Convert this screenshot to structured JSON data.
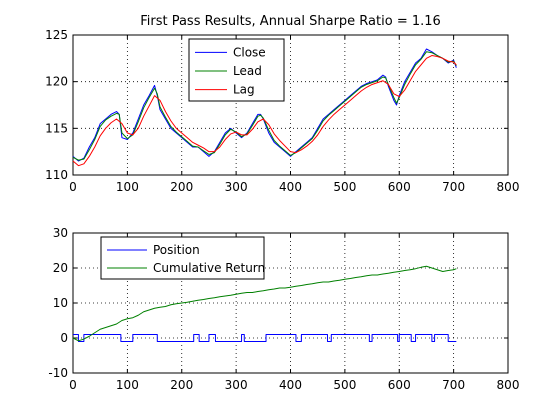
{
  "window": {
    "title": ""
  },
  "chart_data": [
    {
      "type": "line",
      "title": "First Pass Results, Annual Sharpe Ratio = 1.16",
      "xlabel": "",
      "ylabel": "",
      "xlim": [
        0,
        800
      ],
      "ylim": [
        110,
        125
      ],
      "xticks": [
        0,
        100,
        200,
        300,
        400,
        500,
        600,
        700,
        800
      ],
      "yticks": [
        110,
        115,
        120,
        125
      ],
      "grid": true,
      "legend": "top-center",
      "series": [
        {
          "name": "Close",
          "color": "#0000ff",
          "x": [
            0,
            10,
            20,
            30,
            40,
            50,
            60,
            70,
            80,
            85,
            90,
            100,
            110,
            120,
            130,
            140,
            150,
            155,
            160,
            170,
            180,
            190,
            200,
            210,
            220,
            230,
            240,
            250,
            260,
            270,
            280,
            290,
            300,
            310,
            320,
            330,
            340,
            345,
            350,
            360,
            370,
            380,
            390,
            400,
            410,
            420,
            430,
            440,
            450,
            460,
            470,
            480,
            490,
            500,
            510,
            520,
            530,
            540,
            550,
            560,
            570,
            575,
            580,
            590,
            595,
            600,
            610,
            620,
            630,
            640,
            650,
            660,
            670,
            680,
            690,
            700,
            705
          ],
          "values": [
            112.0,
            111.5,
            111.8,
            113.0,
            114.0,
            115.5,
            116.0,
            116.5,
            116.8,
            116.5,
            114.0,
            113.8,
            114.5,
            116.0,
            117.5,
            118.5,
            119.6,
            118.5,
            117.0,
            116.0,
            115.0,
            114.5,
            114.0,
            113.5,
            113.0,
            113.0,
            112.5,
            112.0,
            112.5,
            113.5,
            114.5,
            115.0,
            114.5,
            114.0,
            114.5,
            115.5,
            116.5,
            116.5,
            116.0,
            114.5,
            113.5,
            113.0,
            112.5,
            112.0,
            112.5,
            113.0,
            113.5,
            114.0,
            115.0,
            116.0,
            116.5,
            117.0,
            117.5,
            118.0,
            118.5,
            119.0,
            119.5,
            119.8,
            120.0,
            120.2,
            120.7,
            120.5,
            119.5,
            118.0,
            117.5,
            118.5,
            120.0,
            121.0,
            122.0,
            122.5,
            123.5,
            123.2,
            122.8,
            122.5,
            122.0,
            122.3,
            121.5
          ]
        },
        {
          "name": "Lead",
          "color": "#008000",
          "x": [
            0,
            10,
            20,
            30,
            40,
            50,
            60,
            70,
            80,
            85,
            90,
            100,
            110,
            120,
            130,
            140,
            150,
            155,
            160,
            170,
            180,
            190,
            200,
            210,
            220,
            230,
            240,
            250,
            260,
            270,
            280,
            290,
            300,
            310,
            320,
            330,
            340,
            345,
            350,
            360,
            370,
            380,
            390,
            400,
            410,
            420,
            430,
            440,
            450,
            460,
            470,
            480,
            490,
            500,
            510,
            520,
            530,
            540,
            550,
            560,
            570,
            575,
            580,
            590,
            595,
            600,
            610,
            620,
            630,
            640,
            650,
            660,
            670,
            680,
            690,
            700,
            705
          ],
          "values": [
            111.9,
            111.6,
            111.7,
            112.7,
            113.8,
            115.2,
            115.9,
            116.3,
            116.6,
            116.5,
            114.5,
            113.9,
            114.3,
            115.7,
            117.2,
            118.3,
            119.3,
            118.7,
            117.3,
            116.2,
            115.2,
            114.6,
            114.1,
            113.6,
            113.1,
            113.0,
            112.6,
            112.2,
            112.4,
            113.3,
            114.3,
            114.9,
            114.6,
            114.1,
            114.4,
            115.3,
            116.3,
            116.4,
            116.1,
            114.8,
            113.7,
            113.1,
            112.6,
            112.1,
            112.4,
            112.9,
            113.4,
            113.9,
            114.8,
            115.8,
            116.4,
            116.9,
            117.4,
            117.9,
            118.4,
            118.9,
            119.4,
            119.7,
            119.9,
            120.1,
            120.5,
            120.4,
            119.7,
            118.3,
            117.7,
            118.3,
            119.7,
            120.8,
            121.8,
            122.4,
            123.2,
            123.1,
            122.8,
            122.5,
            122.1,
            122.2,
            121.7
          ]
        },
        {
          "name": "Lag",
          "color": "#ff0000",
          "x": [
            0,
            10,
            20,
            30,
            40,
            50,
            60,
            70,
            80,
            90,
            100,
            110,
            120,
            130,
            140,
            150,
            160,
            170,
            180,
            190,
            200,
            210,
            220,
            230,
            240,
            250,
            260,
            270,
            280,
            290,
            300,
            310,
            320,
            330,
            340,
            350,
            360,
            370,
            380,
            390,
            400,
            410,
            420,
            430,
            440,
            450,
            460,
            470,
            480,
            490,
            500,
            510,
            520,
            530,
            540,
            550,
            560,
            570,
            580,
            590,
            600,
            610,
            620,
            630,
            640,
            650,
            660,
            670,
            680,
            690,
            700,
            705
          ],
          "values": [
            111.5,
            111.0,
            111.2,
            112.0,
            113.0,
            114.2,
            115.0,
            115.6,
            116.0,
            115.5,
            114.5,
            114.3,
            115.0,
            116.3,
            117.4,
            118.5,
            118.0,
            116.8,
            115.8,
            115.0,
            114.5,
            114.0,
            113.5,
            113.2,
            112.9,
            112.5,
            112.5,
            113.0,
            113.8,
            114.4,
            114.6,
            114.3,
            114.3,
            114.9,
            115.7,
            116.0,
            115.4,
            114.4,
            113.7,
            113.1,
            112.5,
            112.4,
            112.7,
            113.1,
            113.6,
            114.3,
            115.2,
            115.9,
            116.5,
            117.0,
            117.5,
            118.0,
            118.5,
            119.0,
            119.4,
            119.7,
            119.9,
            120.1,
            119.7,
            118.7,
            118.4,
            119.1,
            120.1,
            121.1,
            121.8,
            122.5,
            122.8,
            122.7,
            122.5,
            122.2,
            122.1,
            121.8
          ]
        }
      ]
    },
    {
      "type": "line",
      "title": "",
      "xlabel": "",
      "ylabel": "",
      "xlim": [
        0,
        800
      ],
      "ylim": [
        -10,
        30
      ],
      "xticks": [
        0,
        100,
        200,
        300,
        400,
        500,
        600,
        700,
        800
      ],
      "yticks": [
        -10,
        0,
        10,
        20,
        30
      ],
      "grid": true,
      "legend": "top-left",
      "series": [
        {
          "name": "Position",
          "color": "#0000ff",
          "step": true,
          "x": [
            0,
            10,
            20,
            88,
            110,
            155,
            222,
            232,
            250,
            262,
            310,
            315,
            355,
            410,
            420,
            468,
            475,
            545,
            550,
            597,
            600,
            622,
            630,
            660,
            665,
            690,
            705
          ],
          "values": [
            1,
            -1,
            1,
            -1,
            1,
            -1,
            1,
            -1,
            1,
            -1,
            1,
            -1,
            1,
            -1,
            1,
            -1,
            1,
            -1,
            1,
            -1,
            1,
            -1,
            1,
            -1,
            1,
            -1,
            -1
          ]
        },
        {
          "name": "Cumulative Return",
          "color": "#008000",
          "x": [
            0,
            10,
            20,
            30,
            40,
            50,
            60,
            70,
            80,
            90,
            100,
            110,
            120,
            130,
            140,
            150,
            160,
            170,
            180,
            190,
            200,
            210,
            220,
            230,
            240,
            250,
            260,
            270,
            280,
            290,
            300,
            310,
            320,
            330,
            340,
            350,
            360,
            370,
            380,
            390,
            400,
            410,
            420,
            430,
            440,
            450,
            460,
            470,
            480,
            490,
            500,
            510,
            520,
            530,
            540,
            550,
            560,
            570,
            580,
            590,
            600,
            610,
            620,
            630,
            640,
            650,
            660,
            670,
            680,
            690,
            700,
            705
          ],
          "values": [
            0,
            -0.8,
            -0.3,
            0.5,
            1.5,
            2.5,
            3.0,
            3.5,
            4.0,
            5.0,
            5.5,
            5.8,
            6.5,
            7.5,
            8.0,
            8.5,
            8.8,
            9.0,
            9.5,
            9.8,
            10.0,
            10.2,
            10.5,
            10.8,
            11.0,
            11.3,
            11.5,
            11.8,
            12.0,
            12.2,
            12.5,
            12.8,
            13.0,
            13.0,
            13.3,
            13.5,
            13.8,
            14.0,
            14.3,
            14.3,
            14.5,
            14.8,
            15.0,
            15.3,
            15.5,
            15.8,
            16.0,
            16.0,
            16.3,
            16.5,
            16.8,
            17.0,
            17.3,
            17.5,
            17.8,
            18.0,
            18.0,
            18.3,
            18.5,
            18.8,
            19.0,
            19.3,
            19.5,
            19.8,
            20.2,
            20.5,
            20.0,
            19.5,
            19.0,
            19.3,
            19.5,
            19.8
          ]
        }
      ]
    }
  ]
}
